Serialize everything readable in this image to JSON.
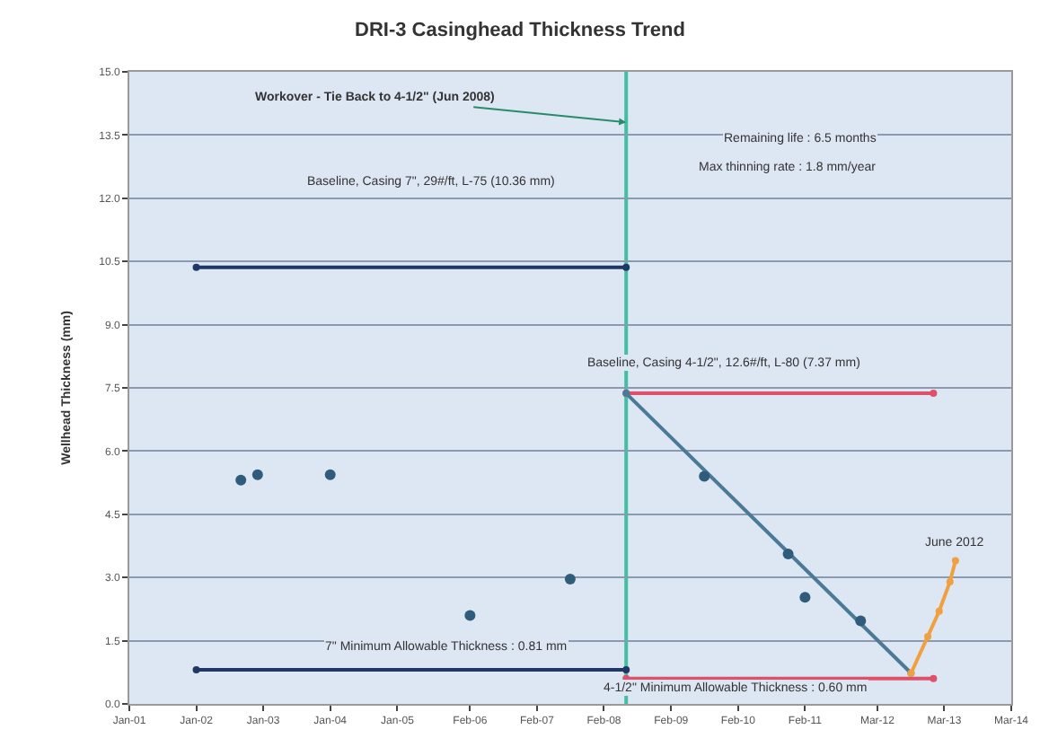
{
  "chart_data": {
    "type": "scatter",
    "title": "DRI-3 Casinghead Thickness Trend",
    "ylabel": "Wellhead Thickness (mm)",
    "xlim": [
      "2001-01-01",
      "2014-03-01"
    ],
    "xticks": [
      {
        "value": "2001-01-01",
        "label": "Jan-01"
      },
      {
        "value": "2002-01-01",
        "label": "Jan-02"
      },
      {
        "value": "2003-01-01",
        "label": "Jan-03"
      },
      {
        "value": "2004-01-01",
        "label": "Jan-04"
      },
      {
        "value": "2005-01-01",
        "label": "Jan-05"
      },
      {
        "value": "2006-02-01",
        "label": "Feb-06"
      },
      {
        "value": "2007-02-01",
        "label": "Feb-07"
      },
      {
        "value": "2008-02-01",
        "label": "Feb-08"
      },
      {
        "value": "2009-02-01",
        "label": "Feb-09"
      },
      {
        "value": "2010-02-01",
        "label": "Feb-10"
      },
      {
        "value": "2011-02-01",
        "label": "Feb-11"
      },
      {
        "value": "2012-03-01",
        "label": "Mar-12"
      },
      {
        "value": "2013-03-01",
        "label": "Mar-13"
      },
      {
        "value": "2014-03-01",
        "label": "Mar-14"
      }
    ],
    "ylim": [
      0,
      15
    ],
    "yticks": [
      {
        "value": 0,
        "label": "0.0"
      },
      {
        "value": 1.5,
        "label": "1.5"
      },
      {
        "value": 3,
        "label": "3.0"
      },
      {
        "value": 4.5,
        "label": "4.5"
      },
      {
        "value": 6,
        "label": "6.0"
      },
      {
        "value": 7.5,
        "label": "7.5"
      },
      {
        "value": 9,
        "label": "9.0"
      },
      {
        "value": 10.5,
        "label": "10.5"
      },
      {
        "value": 12,
        "label": "12.0"
      },
      {
        "value": 13.5,
        "label": "13.5"
      },
      {
        "value": 15,
        "label": "15.0"
      }
    ],
    "grid": "y",
    "marker": "circle",
    "series": [
      {
        "type": "line",
        "color": "#1f3864",
        "x": [
          "2002-01-01",
          "2008-06-01"
        ],
        "values": [
          10.36,
          10.36
        ]
      },
      {
        "type": "line",
        "color": "#1f3864",
        "x": [
          "2002-01-01",
          "2008-06-01"
        ],
        "values": [
          0.81,
          0.81
        ]
      },
      {
        "type": "line",
        "color": "#e0506a",
        "x": [
          "2008-06-01",
          "2013-01-01"
        ],
        "values": [
          7.37,
          7.37
        ]
      },
      {
        "type": "line",
        "color": "#e0506a",
        "x": [
          "2008-06-01",
          "2013-01-01"
        ],
        "values": [
          0.6,
          0.6
        ]
      },
      {
        "type": "line",
        "color": "#4a7a96",
        "x": [
          "2008-06-01",
          "2012-09-01"
        ],
        "values": [
          7.37,
          0.73
        ]
      },
      {
        "type": "line",
        "color": "#f0a040",
        "x": [
          "2012-09-01",
          "2012-12-01",
          "2013-02-01",
          "2013-04-01",
          "2013-05-01"
        ],
        "values": [
          0.73,
          1.6,
          2.2,
          2.9,
          3.4
        ]
      },
      {
        "color": "#2e5c7a",
        "x": [
          "2002-09-01",
          "2002-12-01",
          "2004-01-01",
          "2006-02-01",
          "2007-08-01",
          "2009-08-01",
          "2010-11-01",
          "2011-02-01",
          "2011-12-01"
        ],
        "values": [
          5.31,
          5.44,
          5.44,
          2.1,
          2.96,
          5.4,
          3.56,
          2.53,
          1.97
        ]
      }
    ],
    "ref_lines": [
      {
        "axis": "x",
        "value": "2008-06-01",
        "color": "#40c0a0"
      }
    ],
    "annotations": [
      {
        "text": "Workover - Tie Back to 4-1/2\" (Jun 2008)",
        "x": "2008-06-01",
        "y": 13.8
      },
      "Baseline, Casing 7\", 29#/ft, L-75 (10.36 mm)",
      "Remaining life : 6.5 months",
      "Max thinning rate : 1.8 mm/year",
      "Baseline, Casing 4-1/2\", 12.6#/ft, L-80 (7.37 mm)",
      {
        "text": "June 2012",
        "x": "2013-05-01",
        "y": 3.4
      },
      "7\" Minimum Allowable Thickness : 0.81 mm",
      "4-1/2\" Minimum Allowable Thickness : 0.60 mm"
    ]
  }
}
